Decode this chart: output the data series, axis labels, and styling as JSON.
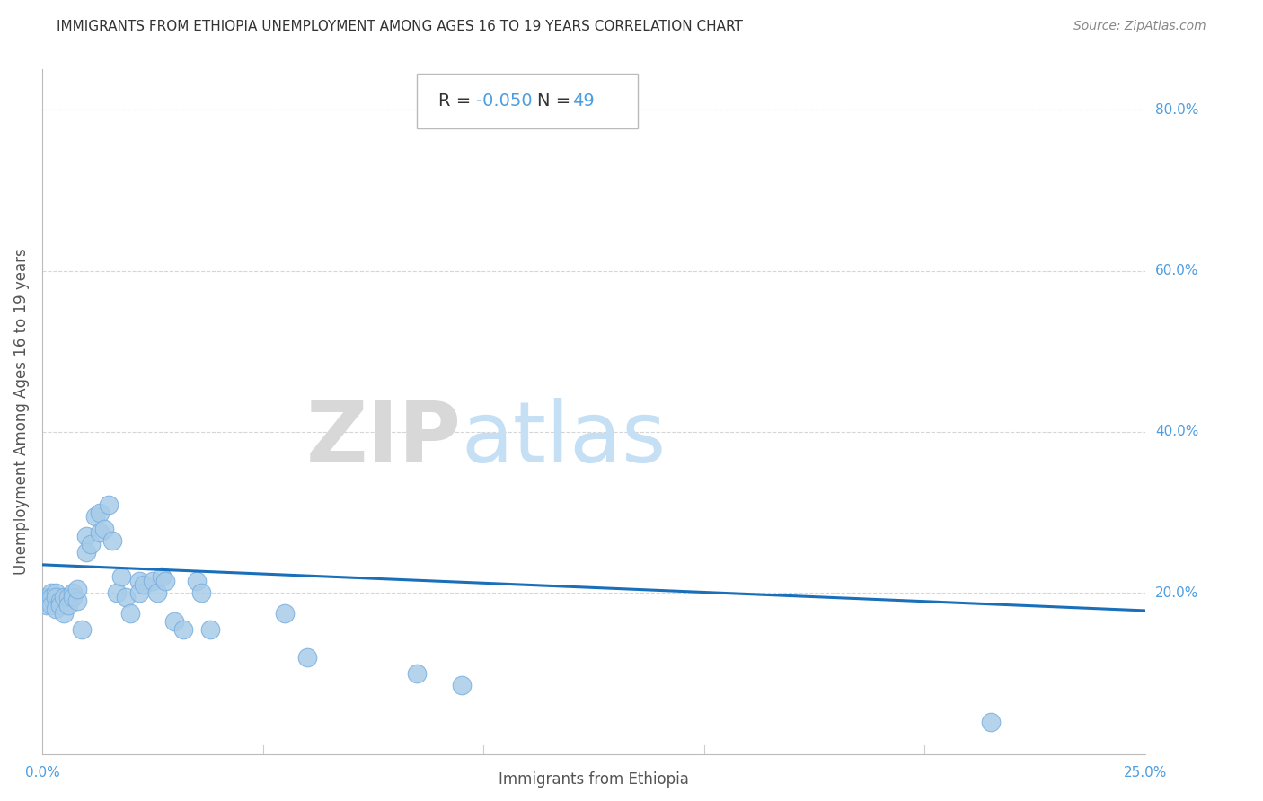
{
  "title": "IMMIGRANTS FROM ETHIOPIA UNEMPLOYMENT AMONG AGES 16 TO 19 YEARS CORRELATION CHART",
  "source": "Source: ZipAtlas.com",
  "xlabel": "Immigrants from Ethiopia",
  "ylabel": "Unemployment Among Ages 16 to 19 years",
  "R_text": "R = ",
  "R_val": "-0.050",
  "N_text": "   N = ",
  "N_val": "49",
  "xlim": [
    0.0,
    0.25
  ],
  "ylim": [
    0.0,
    0.85
  ],
  "xticks": [
    0.0,
    0.05,
    0.1,
    0.15,
    0.2,
    0.25
  ],
  "yticks": [
    0.2,
    0.4,
    0.6,
    0.8
  ],
  "yticklabels": [
    "20.0%",
    "40.0%",
    "60.0%",
    "80.0%"
  ],
  "scatter_color": "#a8cce8",
  "scatter_edge_color": "#7aafe0",
  "line_color": "#1a6fba",
  "grid_color": "#cccccc",
  "background_color": "#ffffff",
  "title_color": "#333333",
  "axis_label_color": "#555555",
  "tick_label_color": "#4d9de0",
  "annotation_dark": "#333333",
  "annotation_blue": "#4d9de0",
  "watermark_zip_color": "#d8d8d8",
  "watermark_atlas_color": "#c5dff5",
  "line_start_y": 0.235,
  "line_end_y": 0.178,
  "points_x": [
    0.001,
    0.001,
    0.002,
    0.002,
    0.002,
    0.003,
    0.003,
    0.003,
    0.004,
    0.004,
    0.005,
    0.005,
    0.006,
    0.006,
    0.007,
    0.007,
    0.008,
    0.008,
    0.009,
    0.01,
    0.01,
    0.011,
    0.012,
    0.013,
    0.013,
    0.014,
    0.015,
    0.016,
    0.017,
    0.018,
    0.019,
    0.02,
    0.022,
    0.022,
    0.023,
    0.025,
    0.026,
    0.027,
    0.028,
    0.03,
    0.032,
    0.035,
    0.036,
    0.038,
    0.055,
    0.06,
    0.085,
    0.095,
    0.215
  ],
  "points_y": [
    0.195,
    0.185,
    0.2,
    0.195,
    0.185,
    0.2,
    0.195,
    0.18,
    0.19,
    0.185,
    0.195,
    0.175,
    0.195,
    0.185,
    0.2,
    0.195,
    0.19,
    0.205,
    0.155,
    0.27,
    0.25,
    0.26,
    0.295,
    0.275,
    0.3,
    0.28,
    0.31,
    0.265,
    0.2,
    0.22,
    0.195,
    0.175,
    0.215,
    0.2,
    0.21,
    0.215,
    0.2,
    0.22,
    0.215,
    0.165,
    0.155,
    0.215,
    0.2,
    0.155,
    0.175,
    0.12,
    0.1,
    0.085,
    0.04
  ]
}
